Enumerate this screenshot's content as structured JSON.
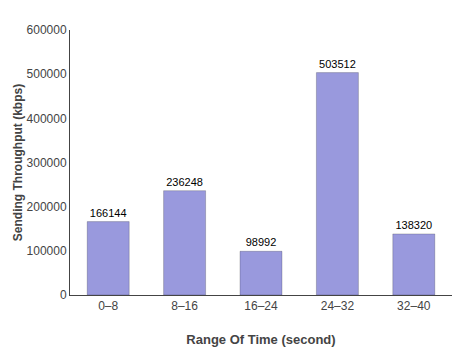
{
  "chart_data": {
    "type": "bar",
    "categories": [
      "0–8",
      "8–16",
      "16–24",
      "24–32",
      "32–40"
    ],
    "values": [
      166144,
      236248,
      98992,
      503512,
      138320
    ],
    "color": "#9999dd",
    "xlabel": "Range Of Time (second)",
    "ylabel": "Sending Throughput (kbps)",
    "ylim": [
      0,
      600000
    ],
    "yticks": [
      0,
      100000,
      200000,
      300000,
      400000,
      500000,
      600000
    ],
    "grid": false,
    "data_labels": true
  }
}
